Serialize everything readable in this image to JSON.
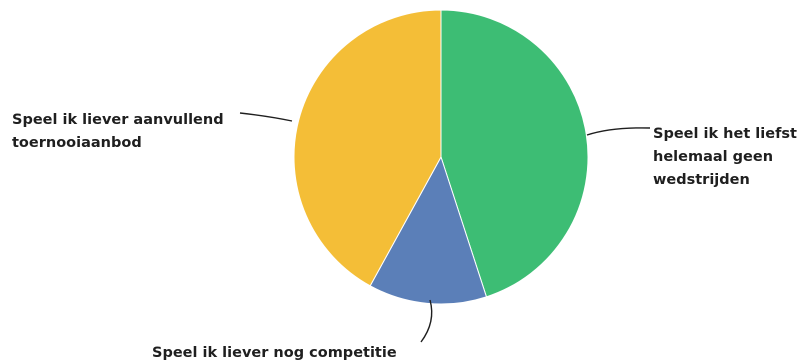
{
  "chart_data": {
    "type": "pie",
    "title": "",
    "start_angle_deg": 0,
    "direction": "clockwise",
    "slices": [
      {
        "label": "Speel ik het liefst helemaal geen wedstrijden",
        "label_lines": [
          "Speel ik het liefst",
          "helemaal geen",
          "wedstrijden"
        ],
        "value": 45,
        "color": "#3dbd74"
      },
      {
        "label": "Speel ik liever nog competitie",
        "label_lines": [
          "Speel ik liever nog competitie"
        ],
        "value": 13,
        "color": "#5b7fb8"
      },
      {
        "label": "Speel ik liever aanvullend toernooiaanbod",
        "label_lines": [
          "Speel ik liever aanvullend",
          "toernooiaanbod"
        ],
        "value": 42,
        "color": "#f4be37"
      }
    ]
  }
}
